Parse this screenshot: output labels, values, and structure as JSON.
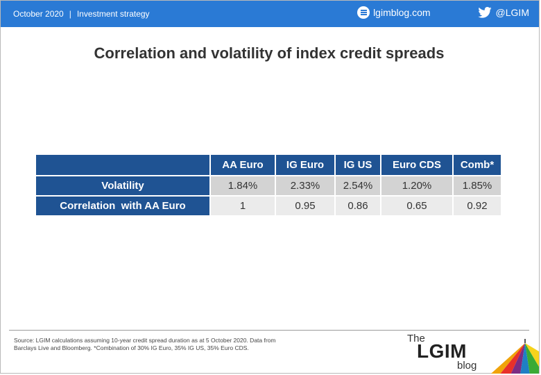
{
  "header": {
    "date": "October 2020",
    "separator": "|",
    "section": "Investment strategy",
    "site": "lgimblog.com",
    "twitter": "@LGIM"
  },
  "title": "Correlation and volatility of index credit spreads",
  "table": {
    "columns": [
      "AA Euro",
      "IG Euro",
      "IG US",
      "Euro CDS",
      "Comb*"
    ],
    "rows": [
      {
        "label": "Volatility",
        "values": [
          "1.84%",
          "2.33%",
          "2.54%",
          "1.20%",
          "1.85%"
        ]
      },
      {
        "label": "Correlation  with AA Euro",
        "values": [
          "1",
          "0.95",
          "0.86",
          "0.65",
          "0.92"
        ]
      }
    ]
  },
  "footer": {
    "source_line1": "Source: LGIM calculations assuming 10-year credit spread duration as at 5 October 2020. Data from",
    "source_line2": "Barclays Live and Bloomberg. *Combination of 30% IG Euro, 35% IG US, 35% Euro CDS.",
    "logo": {
      "the": "The",
      "name": "LGIM",
      "blog": "blog"
    }
  },
  "colors": {
    "header_bar": "#2a7ad5",
    "table_header": "#1f5393",
    "row1": "#d3d3d3",
    "row2": "#ebebeb"
  },
  "icons": [
    "globe-icon",
    "twitter-bird-icon",
    "umbrella-logo-icon"
  ]
}
